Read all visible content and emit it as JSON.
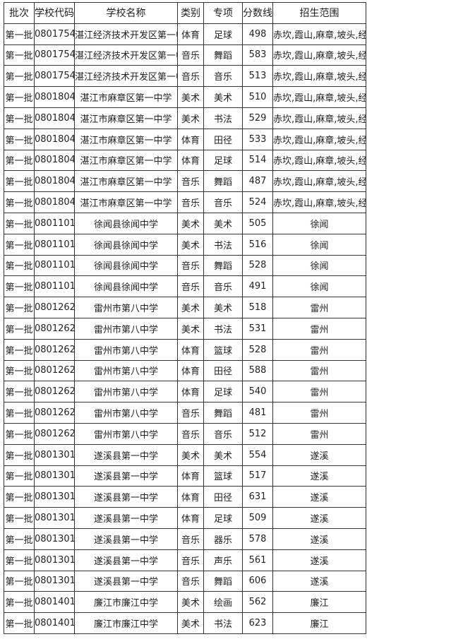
{
  "headers": [
    "批次",
    "学校代码",
    "学校名称",
    "类别",
    "专项",
    "分数线",
    "招生范围"
  ],
  "rows": [
    [
      "第一批",
      "0801754",
      "湛江经济技术开发区第一中学",
      "体育",
      "足球",
      "498",
      "赤坎,霞山,麻章,坡头,经开区"
    ],
    [
      "第一批",
      "0801754",
      "湛江经济技术开发区第一中学",
      "音乐",
      "舞蹈",
      "583",
      "赤坎,霞山,麻章,坡头,经开区"
    ],
    [
      "第一批",
      "0801754",
      "湛江经济技术开发区第一中学",
      "音乐",
      "音乐",
      "513",
      "赤坎,霞山,麻章,坡头,经开区"
    ],
    [
      "第一批",
      "0801804",
      "湛江市麻章区第一中学",
      "美术",
      "美术",
      "510",
      "赤坎,霞山,麻章,坡头,经开区"
    ],
    [
      "第一批",
      "0801804",
      "湛江市麻章区第一中学",
      "美术",
      "书法",
      "529",
      "赤坎,霞山,麻章,坡头,经开区"
    ],
    [
      "第一批",
      "0801804",
      "湛江市麻章区第一中学",
      "体育",
      "田径",
      "533",
      "赤坎,霞山,麻章,坡头,经开区"
    ],
    [
      "第一批",
      "0801804",
      "湛江市麻章区第一中学",
      "体育",
      "足球",
      "514",
      "赤坎,霞山,麻章,坡头,经开区"
    ],
    [
      "第一批",
      "0801804",
      "湛江市麻章区第一中学",
      "音乐",
      "舞蹈",
      "487",
      "赤坎,霞山,麻章,坡头,经开区"
    ],
    [
      "第一批",
      "0801804",
      "湛江市麻章区第一中学",
      "音乐",
      "音乐",
      "524",
      "赤坎,霞山,麻章,坡头,经开区"
    ],
    [
      "第一批",
      "0801101",
      "徐闻县徐闻中学",
      "美术",
      "美术",
      "505",
      "徐闻"
    ],
    [
      "第一批",
      "0801101",
      "徐闻县徐闻中学",
      "美术",
      "书法",
      "516",
      "徐闻"
    ],
    [
      "第一批",
      "0801101",
      "徐闻县徐闻中学",
      "音乐",
      "舞蹈",
      "528",
      "徐闻"
    ],
    [
      "第一批",
      "0801101",
      "徐闻县徐闻中学",
      "音乐",
      "音乐",
      "491",
      "徐闻"
    ],
    [
      "第一批",
      "0801262",
      "雷州市第八中学",
      "美术",
      "美术",
      "518",
      "雷州"
    ],
    [
      "第一批",
      "0801262",
      "雷州市第八中学",
      "美术",
      "书法",
      "531",
      "雷州"
    ],
    [
      "第一批",
      "0801262",
      "雷州市第八中学",
      "体育",
      "篮球",
      "528",
      "雷州"
    ],
    [
      "第一批",
      "0801262",
      "雷州市第八中学",
      "体育",
      "田径",
      "588",
      "雷州"
    ],
    [
      "第一批",
      "0801262",
      "雷州市第八中学",
      "体育",
      "足球",
      "540",
      "雷州"
    ],
    [
      "第一批",
      "0801262",
      "雷州市第八中学",
      "音乐",
      "舞蹈",
      "481",
      "雷州"
    ],
    [
      "第一批",
      "0801262",
      "雷州市第八中学",
      "音乐",
      "音乐",
      "512",
      "雷州"
    ],
    [
      "第一批",
      "0801301",
      "遂溪县第一中学",
      "美术",
      "美术",
      "554",
      "遂溪"
    ],
    [
      "第一批",
      "0801301",
      "遂溪县第一中学",
      "体育",
      "篮球",
      "517",
      "遂溪"
    ],
    [
      "第一批",
      "0801301",
      "遂溪县第一中学",
      "体育",
      "田径",
      "631",
      "遂溪"
    ],
    [
      "第一批",
      "0801301",
      "遂溪县第一中学",
      "体育",
      "足球",
      "509",
      "遂溪"
    ],
    [
      "第一批",
      "0801301",
      "遂溪县第一中学",
      "音乐",
      "器乐",
      "578",
      "遂溪"
    ],
    [
      "第一批",
      "0801301",
      "遂溪县第一中学",
      "音乐",
      "声乐",
      "561",
      "遂溪"
    ],
    [
      "第一批",
      "0801301",
      "遂溪县第一中学",
      "音乐",
      "舞蹈",
      "606",
      "遂溪"
    ],
    [
      "第一批",
      "0801401",
      "廉江市廉江中学",
      "美术",
      "绘画",
      "562",
      "廉江"
    ],
    [
      "第一批",
      "0801401",
      "廉江市廉江中学",
      "美术",
      "书法",
      "623",
      "廉江"
    ]
  ]
}
